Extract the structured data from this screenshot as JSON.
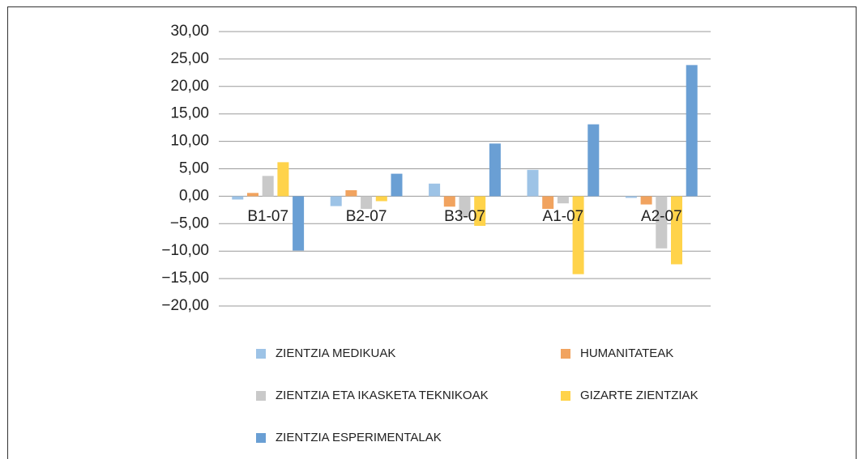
{
  "chart_data": {
    "type": "bar",
    "categories": [
      "B1-07",
      "B2-07",
      "B3-07",
      "A1-07",
      "A2-07"
    ],
    "series": [
      {
        "name": "ZIENTZIA MEDIKUAK",
        "color": "#9dc3e6",
        "values": [
          -0.6,
          -1.8,
          2.3,
          4.8,
          -0.3
        ]
      },
      {
        "name": "HUMANITATEAK",
        "color": "#f1a35f",
        "values": [
          0.6,
          1.1,
          -1.9,
          -2.3,
          -1.5
        ]
      },
      {
        "name": "ZIENTZIA ETA IKASKETA TEKNIKOAK",
        "color": "#c9c9c9",
        "values": [
          3.7,
          -2.3,
          -3.8,
          -1.3,
          -9.5
        ]
      },
      {
        "name": "GIZARTE ZIENTZIAK",
        "color": "#ffd34a",
        "values": [
          6.2,
          -0.9,
          -5.4,
          -14.2,
          -12.4
        ]
      },
      {
        "name": "ZIENTZIA ESPERIMENTALAK",
        "color": "#6a9fd4",
        "values": [
          -9.9,
          4.1,
          9.6,
          13.1,
          23.9
        ]
      }
    ],
    "ylim": [
      -20,
      30
    ],
    "yticks": [
      {
        "value": 30,
        "label": "30,00"
      },
      {
        "value": 25,
        "label": "25,00"
      },
      {
        "value": 20,
        "label": "20,00"
      },
      {
        "value": 15,
        "label": "15,00"
      },
      {
        "value": 10,
        "label": "10,00"
      },
      {
        "value": 5,
        "label": "5,00"
      },
      {
        "value": 0,
        "label": "0,00"
      },
      {
        "value": -5,
        "label": "−5,00"
      },
      {
        "value": -10,
        "label": "−10,00"
      },
      {
        "value": -15,
        "label": "−15,00"
      },
      {
        "value": -20,
        "label": "−20,00"
      }
    ],
    "grid": true,
    "legend": "bottom"
  }
}
